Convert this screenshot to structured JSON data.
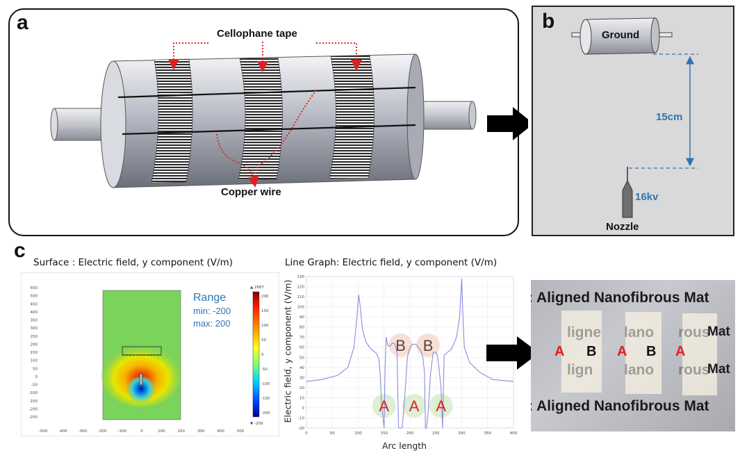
{
  "panel_a": {
    "letter": "a",
    "labels": {
      "tape": "Cellophane tape",
      "wire": "Copper wire"
    }
  },
  "panel_b": {
    "letter": "b",
    "ground": "Ground",
    "distance": "15cm",
    "voltage": "16kv",
    "nozzle": "Nozzle"
  },
  "panel_c": {
    "letter": "c",
    "surface": {
      "title": "Surface : Electric field, y component (V/m)",
      "range_title": "Range",
      "range_min": "min: -200",
      "range_max": "max: 200",
      "x_ticks": [
        "-500",
        "-400",
        "-300",
        "-200",
        "-100",
        "0",
        "100",
        "200",
        "300",
        "400",
        "500"
      ],
      "y_ticks": [
        "550",
        "500",
        "450",
        "400",
        "350",
        "300",
        "250",
        "200",
        "150",
        "100",
        "50",
        "0",
        "-50",
        "-100",
        "-150",
        "-200",
        "-250"
      ],
      "colorbar_top": "▲ 2887",
      "colorbar_bottom": "▼ -209",
      "colorbar_ticks": [
        "200",
        "150",
        "100",
        "50",
        "0",
        "-50",
        "-100",
        "-150",
        "-200"
      ],
      "colors": {
        "field_bg": "#7ad35a"
      }
    },
    "line_graph": {
      "title": "Line Graph: Electric field, y component (V/m)",
      "ylabel": "Electric field, y component (V/m)",
      "xlabel": "Arc length",
      "x_ticks": [
        "0",
        "50",
        "100",
        "150",
        "200",
        "250",
        "300",
        "350",
        "400"
      ],
      "y_ticks": [
        "130",
        "120",
        "110",
        "100",
        "90",
        "80",
        "70",
        "60",
        "50",
        "40",
        "30",
        "20",
        "10",
        "0",
        "-10",
        "-20"
      ],
      "region_labels": [
        "A",
        "A",
        "A",
        "B",
        "B"
      ]
    },
    "photo": {
      "line1": ": Aligned Nanofibrous Mat",
      "line2": ": Aligned Nanofibrous Mat",
      "ghost_row1": [
        "ligne",
        "lano",
        "rous",
        "Mat"
      ],
      "ghost_row2": [
        "lign",
        "lano",
        "rous",
        "Mat"
      ],
      "marks": [
        "A",
        "B",
        "A",
        "B",
        "A"
      ],
      "colors": {
        "A": "#e02020",
        "B": "#111111"
      }
    }
  },
  "chart_data": {
    "type": "line",
    "title": "Line Graph: Electric field, y component (V/m)",
    "xlabel": "Arc length",
    "ylabel": "Electric field, y component (V/m)",
    "xlim": [
      0,
      400
    ],
    "ylim": [
      -20,
      130
    ],
    "series": [
      {
        "x": [
          0,
          30,
          60,
          80,
          92,
          98,
          101,
          104,
          108,
          115,
          125,
          135,
          140,
          143,
          145,
          150,
          152,
          154,
          157,
          160,
          163,
          166,
          169,
          172,
          175,
          176,
          178,
          185,
          190,
          195,
          200,
          203,
          206,
          210,
          213,
          216,
          219,
          222,
          225,
          228,
          230,
          232,
          235,
          240,
          245,
          250,
          253,
          256,
          260,
          263,
          266,
          270,
          280,
          290,
          296,
          300,
          302,
          305,
          315,
          335,
          360,
          400
        ],
        "y": [
          26,
          28,
          32,
          40,
          60,
          92,
          112,
          100,
          78,
          65,
          58,
          54,
          48,
          30,
          5,
          -20,
          40,
          70,
          62,
          61,
          62,
          64,
          64,
          62,
          54,
          30,
          -20,
          -20,
          10,
          50,
          60,
          62,
          63,
          63,
          62,
          60,
          58,
          55,
          50,
          35,
          -20,
          -20,
          -5,
          35,
          55,
          55,
          52,
          40,
          20,
          -20,
          52,
          54,
          58,
          70,
          90,
          128,
          95,
          60,
          45,
          35,
          28,
          26
        ]
      }
    ],
    "grid": true
  }
}
